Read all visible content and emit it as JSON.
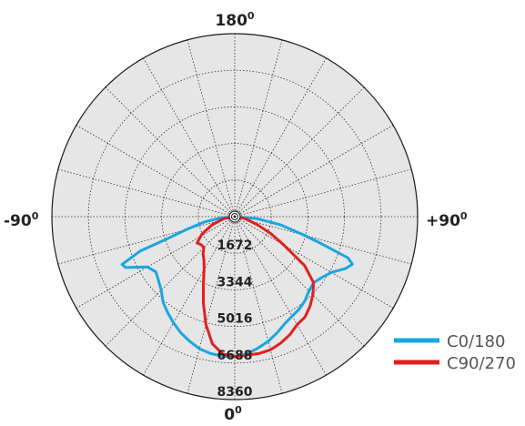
{
  "chart_data": {
    "type": "polar",
    "angle_labels": {
      "top": {
        "base": "180",
        "sup": "0"
      },
      "left": {
        "base": "-90",
        "sup": "0"
      },
      "right": {
        "base": "+90",
        "sup": "0"
      },
      "bottom": {
        "base": "0",
        "sup": "0"
      }
    },
    "radial_ticks": [
      "1672",
      "3344",
      "5016",
      "6688",
      "8360"
    ],
    "radial_values": [
      1672,
      3344,
      5016,
      6688,
      8360
    ],
    "r_max": 8360,
    "angle_step_deg": 15,
    "grid": true,
    "legend_position": "bottom-right",
    "series": [
      {
        "name": "C0/180",
        "color": "#1aa6e0",
        "angles_deg": [
          -90,
          -85,
          -80,
          -75,
          -72,
          -70,
          -67,
          -65,
          -60,
          -55,
          -50,
          -45,
          -40,
          -35,
          -30,
          -25,
          -20,
          -15,
          -10,
          -5,
          0,
          5,
          10,
          15,
          20,
          25,
          30,
          35,
          40,
          45,
          50,
          55,
          60,
          65,
          68,
          70,
          73,
          75,
          80,
          85,
          90
        ],
        "values": [
          0,
          650,
          1400,
          2300,
          3200,
          4600,
          5600,
          5500,
          4600,
          4400,
          4550,
          4750,
          5100,
          5350,
          5600,
          5850,
          6050,
          6250,
          6350,
          6400,
          6400,
          6300,
          6100,
          5900,
          5650,
          5400,
          5250,
          5150,
          5000,
          4800,
          4700,
          4850,
          5100,
          5600,
          5800,
          5500,
          4000,
          3300,
          2100,
          1000,
          0
        ]
      },
      {
        "name": "C90/270",
        "color": "#e0201f",
        "angles_deg": [
          -90,
          -80,
          -70,
          -62,
          -55,
          -50,
          -45,
          -40,
          -35,
          -30,
          -25,
          -20,
          -15,
          -10,
          -5,
          0,
          5,
          10,
          15,
          20,
          25,
          30,
          35,
          40,
          45,
          50,
          55,
          60,
          65,
          70,
          80,
          90
        ],
        "values": [
          0,
          500,
          1100,
          1700,
          2100,
          2000,
          2000,
          2250,
          2450,
          2800,
          3400,
          4200,
          5100,
          5900,
          6300,
          6400,
          6350,
          6350,
          6300,
          6150,
          5950,
          5700,
          5600,
          5350,
          5050,
          4700,
          3900,
          2600,
          1800,
          1150,
          450,
          0
        ]
      }
    ]
  }
}
